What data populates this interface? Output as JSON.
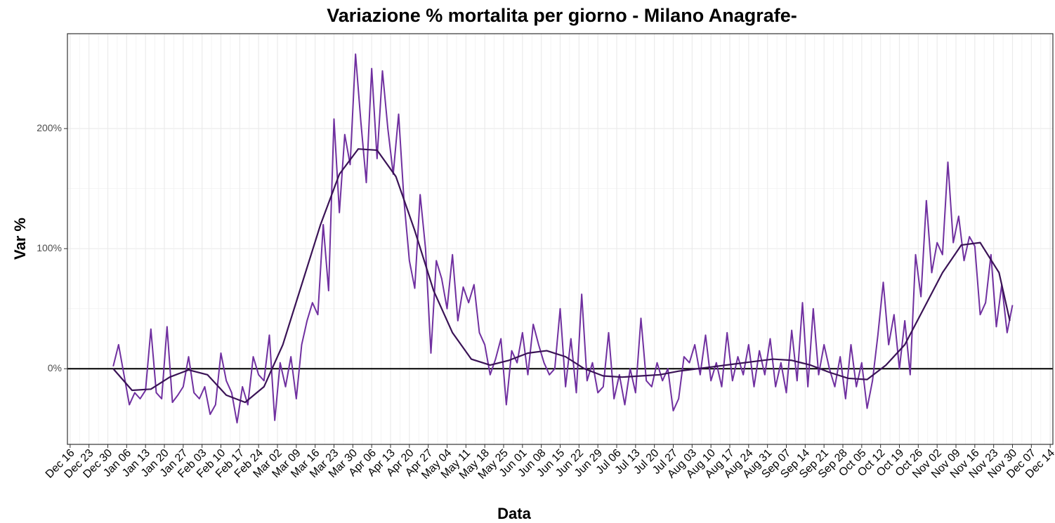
{
  "chart_data": {
    "type": "line",
    "title": "Variazione % mortalita per giorno - Milano Anagrafe-",
    "x_label": "Data",
    "y_label": "Var %",
    "grid": true,
    "hline": 0,
    "xlim": [
      -16,
      350
    ],
    "ylim": [
      -63,
      279
    ],
    "yticks": [
      {
        "value": 0,
        "label": "0%"
      },
      {
        "value": 100,
        "label": "100%"
      },
      {
        "value": 200,
        "label": "200%"
      }
    ],
    "xticks": [
      {
        "value": -15,
        "label": "Dec 16"
      },
      {
        "value": -8,
        "label": "Dec 23"
      },
      {
        "value": -1,
        "label": "Dec 30"
      },
      {
        "value": 6,
        "label": "Jan 06"
      },
      {
        "value": 13,
        "label": "Jan 13"
      },
      {
        "value": 20,
        "label": "Jan 20"
      },
      {
        "value": 27,
        "label": "Jan 27"
      },
      {
        "value": 34,
        "label": "Feb 03"
      },
      {
        "value": 41,
        "label": "Feb 10"
      },
      {
        "value": 48,
        "label": "Feb 17"
      },
      {
        "value": 55,
        "label": "Feb 24"
      },
      {
        "value": 62,
        "label": "Mar 02"
      },
      {
        "value": 69,
        "label": "Mar 09"
      },
      {
        "value": 76,
        "label": "Mar 16"
      },
      {
        "value": 83,
        "label": "Mar 23"
      },
      {
        "value": 90,
        "label": "Mar 30"
      },
      {
        "value": 97,
        "label": "Apr 06"
      },
      {
        "value": 104,
        "label": "Apr 13"
      },
      {
        "value": 111,
        "label": "Apr 20"
      },
      {
        "value": 118,
        "label": "Apr 27"
      },
      {
        "value": 125,
        "label": "May 04"
      },
      {
        "value": 132,
        "label": "May 11"
      },
      {
        "value": 139,
        "label": "May 18"
      },
      {
        "value": 146,
        "label": "May 25"
      },
      {
        "value": 153,
        "label": "Jun 01"
      },
      {
        "value": 160,
        "label": "Jun 08"
      },
      {
        "value": 167,
        "label": "Jun 15"
      },
      {
        "value": 174,
        "label": "Jun 22"
      },
      {
        "value": 181,
        "label": "Jun 29"
      },
      {
        "value": 188,
        "label": "Jul 06"
      },
      {
        "value": 195,
        "label": "Jul 13"
      },
      {
        "value": 202,
        "label": "Jul 20"
      },
      {
        "value": 209,
        "label": "Jul 27"
      },
      {
        "value": 216,
        "label": "Aug 03"
      },
      {
        "value": 223,
        "label": "Aug 10"
      },
      {
        "value": 230,
        "label": "Aug 17"
      },
      {
        "value": 237,
        "label": "Aug 24"
      },
      {
        "value": 244,
        "label": "Aug 31"
      },
      {
        "value": 251,
        "label": "Sep 07"
      },
      {
        "value": 258,
        "label": "Sep 14"
      },
      {
        "value": 265,
        "label": "Sep 21"
      },
      {
        "value": 272,
        "label": "Sep 28"
      },
      {
        "value": 279,
        "label": "Oct 05"
      },
      {
        "value": 286,
        "label": "Oct 12"
      },
      {
        "value": 293,
        "label": "Oct 19"
      },
      {
        "value": 300,
        "label": "Oct 26"
      },
      {
        "value": 307,
        "label": "Nov 02"
      },
      {
        "value": 314,
        "label": "Nov 09"
      },
      {
        "value": 321,
        "label": "Nov 16"
      },
      {
        "value": 328,
        "label": "Nov 23"
      },
      {
        "value": 335,
        "label": "Nov 30"
      },
      {
        "value": 342,
        "label": "Dec 07"
      },
      {
        "value": 349,
        "label": "Dec 14"
      }
    ],
    "series": [
      {
        "color": "#7030a0",
        "width": 2,
        "x": [
          1,
          3,
          5,
          7,
          9,
          11,
          13,
          15,
          17,
          19,
          21,
          23,
          25,
          27,
          29,
          31,
          33,
          35,
          37,
          39,
          41,
          43,
          45,
          47,
          49,
          51,
          53,
          55,
          57,
          59,
          61,
          63,
          65,
          67,
          69,
          71,
          73,
          75,
          77,
          79,
          81,
          83,
          85,
          87,
          89,
          91,
          93,
          95,
          97,
          99,
          101,
          103,
          105,
          107,
          109,
          111,
          113,
          115,
          117,
          119,
          121,
          123,
          125,
          127,
          129,
          131,
          133,
          135,
          137,
          139,
          141,
          143,
          145,
          147,
          149,
          151,
          153,
          155,
          157,
          159,
          161,
          163,
          165,
          167,
          169,
          171,
          173,
          175,
          177,
          179,
          181,
          183,
          185,
          187,
          189,
          191,
          193,
          195,
          197,
          199,
          201,
          203,
          205,
          207,
          209,
          211,
          213,
          215,
          217,
          219,
          221,
          223,
          225,
          227,
          229,
          231,
          233,
          235,
          237,
          239,
          241,
          243,
          245,
          247,
          249,
          251,
          253,
          255,
          257,
          259,
          261,
          263,
          265,
          267,
          269,
          271,
          273,
          275,
          277,
          279,
          281,
          283,
          285,
          287,
          289,
          291,
          293,
          295,
          297,
          299,
          301,
          303,
          305,
          307,
          309,
          311,
          313,
          315,
          317,
          319,
          321,
          323,
          325,
          327,
          329,
          331,
          333,
          335
        ],
        "values": [
          2,
          20,
          -5,
          -30,
          -20,
          -25,
          -18,
          33,
          -20,
          -25,
          35,
          -28,
          -22,
          -15,
          10,
          -20,
          -25,
          -15,
          -38,
          -30,
          13,
          -10,
          -20,
          -45,
          -15,
          -30,
          10,
          -5,
          -10,
          28,
          -43,
          5,
          -15,
          10,
          -25,
          20,
          40,
          55,
          45,
          120,
          65,
          208,
          130,
          195,
          170,
          262,
          205,
          155,
          250,
          175,
          248,
          200,
          162,
          212,
          140,
          90,
          67,
          145,
          100,
          13,
          90,
          75,
          50,
          95,
          40,
          68,
          55,
          70,
          30,
          20,
          -5,
          8,
          25,
          -30,
          15,
          5,
          30,
          -5,
          37,
          20,
          5,
          -5,
          0,
          50,
          -15,
          25,
          -20,
          62,
          -10,
          5,
          -20,
          -15,
          30,
          -25,
          -5,
          -30,
          0,
          -20,
          42,
          -10,
          -15,
          5,
          -10,
          0,
          -35,
          -25,
          10,
          5,
          20,
          -5,
          28,
          -10,
          5,
          -15,
          30,
          -10,
          10,
          -5,
          20,
          -15,
          15,
          -5,
          25,
          -15,
          5,
          -20,
          32,
          -10,
          55,
          -15,
          50,
          -5,
          20,
          0,
          -15,
          10,
          -25,
          20,
          -15,
          5,
          -33,
          -10,
          28,
          72,
          20,
          45,
          0,
          40,
          -5,
          95,
          60,
          140,
          80,
          105,
          95,
          172,
          105,
          127,
          90,
          110,
          102,
          45,
          55,
          95,
          35,
          70,
          30,
          53
        ]
      },
      {
        "color": "#3a1356",
        "width": 2.2,
        "x": [
          1,
          8,
          15,
          22,
          29,
          36,
          43,
          50,
          57,
          64,
          71,
          78,
          85,
          92,
          99,
          106,
          113,
          120,
          127,
          134,
          141,
          148,
          155,
          162,
          169,
          176,
          183,
          190,
          197,
          204,
          211,
          218,
          225,
          232,
          239,
          246,
          253,
          260,
          267,
          274,
          281,
          288,
          295,
          302,
          309,
          316,
          323,
          330,
          334
        ],
        "values": [
          0,
          -18,
          -17,
          -7,
          -1,
          -5,
          -22,
          -28,
          -15,
          20,
          70,
          120,
          162,
          183,
          182,
          160,
          115,
          65,
          30,
          8,
          3,
          7,
          13,
          15,
          10,
          0,
          -6,
          -7,
          -6,
          -5,
          -2,
          0,
          2,
          4,
          6,
          8,
          7,
          3,
          -3,
          -8,
          -9,
          3,
          20,
          50,
          80,
          103,
          105,
          80,
          40
        ]
      }
    ]
  }
}
